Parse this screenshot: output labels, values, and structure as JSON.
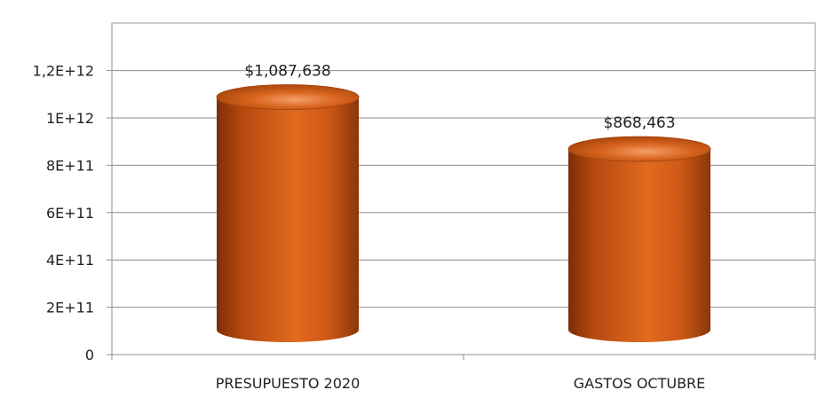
{
  "chart_data": {
    "type": "bar",
    "categories": [
      "PRESUPUESTO 2020",
      "GASTOS OCTUBRE"
    ],
    "values": [
      1087638000000,
      868463000000
    ],
    "data_labels": [
      "$1,087,638",
      "$868,463"
    ],
    "y_ticks": [
      0,
      200000000000,
      400000000000,
      600000000000,
      800000000000,
      1000000000000,
      1200000000000
    ],
    "y_tick_labels": [
      "0",
      "2E+11",
      "4E+11",
      "6E+11",
      "8E+11",
      "1E+12",
      "1,2E+12"
    ],
    "ylim": [
      0,
      1200000000000
    ],
    "grid": true,
    "legend": "none",
    "bar_style": "3d-cylinder",
    "bar_color": "#c8561a"
  }
}
